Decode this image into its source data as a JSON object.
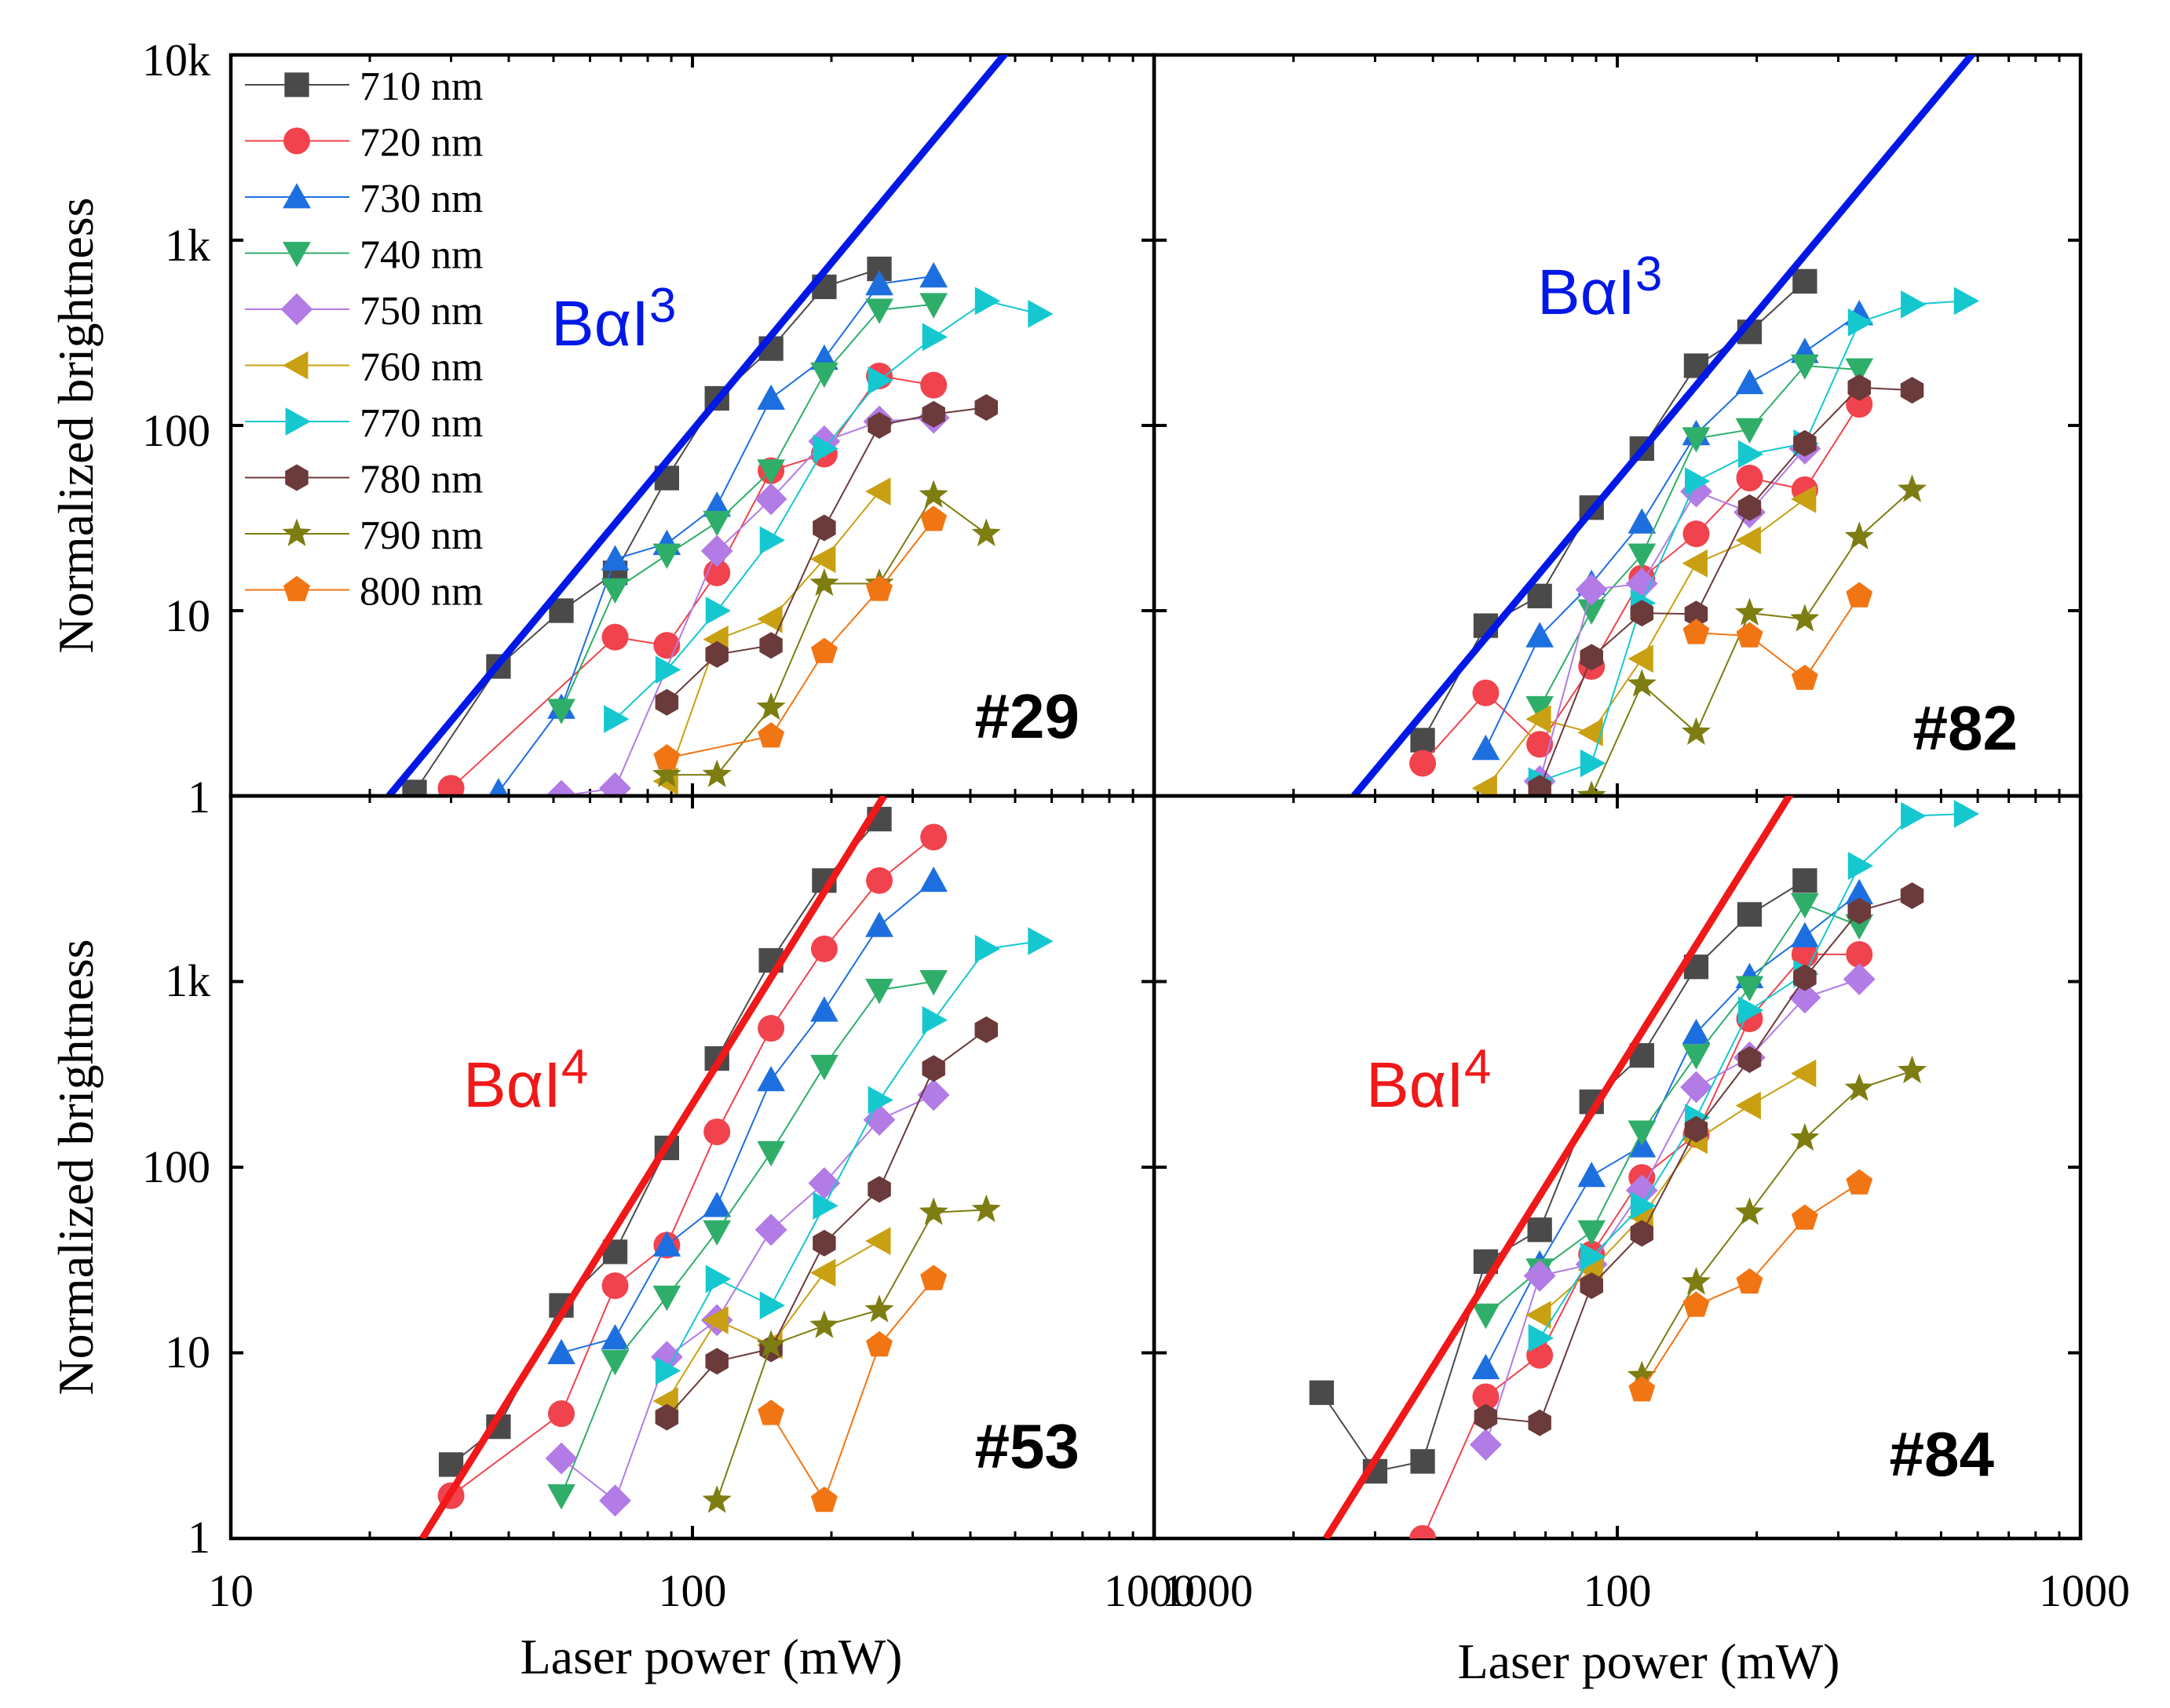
{
  "figure": {
    "shared_xlabel": "Laser power (mW)",
    "shared_ylabel": "Normalized brightness",
    "ytick_labels": [
      "1",
      "10",
      "100",
      "1k",
      "10k"
    ],
    "ytick_labels_bottom": [
      "1",
      "10",
      "100",
      "1k"
    ],
    "xtick_labels_left": [
      "10",
      "100",
      "1000"
    ],
    "xtick_labels_right": [
      "1000",
      "100",
      "1000"
    ]
  },
  "legend": [
    {
      "name": "710 nm",
      "color": "#4a4a4a",
      "marker": "square"
    },
    {
      "name": "720 nm",
      "color": "#f0434d",
      "marker": "circle"
    },
    {
      "name": "730 nm",
      "color": "#1d6fe0",
      "marker": "triangle-up"
    },
    {
      "name": "740 nm",
      "color": "#2fae6a",
      "marker": "triangle-down"
    },
    {
      "name": "750 nm",
      "color": "#b27be6",
      "marker": "diamond"
    },
    {
      "name": "760 nm",
      "color": "#c9a012",
      "marker": "triangle-left"
    },
    {
      "name": "770 nm",
      "color": "#15c8d0",
      "marker": "triangle-right"
    },
    {
      "name": "780 nm",
      "color": "#6b3a3a",
      "marker": "hexagon"
    },
    {
      "name": "790 nm",
      "color": "#7d7d12",
      "marker": "star"
    },
    {
      "name": "800 nm",
      "color": "#f27513",
      "marker": "pentagon"
    }
  ],
  "chart_data": [
    {
      "type": "scatter",
      "panel_label": "#29",
      "fit": {
        "label_base": "BαI",
        "label_exp": "3",
        "order": 3,
        "color": "#0018e6",
        "x": [
          22,
          500
        ],
        "y": [
          1,
          11780
        ]
      },
      "xlim": [
        10,
        1000
      ],
      "ylim": [
        1,
        10000
      ],
      "xscale": "log",
      "yscale": "log",
      "xlabel": "",
      "ylabel": "Normalized brightness",
      "series": [
        {
          "name": "710 nm",
          "x": [
            25,
            38,
            52,
            68,
            88,
            113,
            148,
            193,
            254
          ],
          "y": [
            1.05,
            5,
            10,
            16,
            52,
            140,
            260,
            560,
            700
          ]
        },
        {
          "name": "720 nm",
          "x": [
            30,
            68,
            88,
            113,
            148,
            193,
            254,
            333
          ],
          "y": [
            1.1,
            7.2,
            6.5,
            16,
            57,
            70,
            185,
            165
          ]
        },
        {
          "name": "730 nm",
          "x": [
            38,
            52,
            68,
            88,
            113,
            148,
            193,
            254,
            333
          ],
          "y": [
            1.05,
            3,
            19,
            23,
            37,
            140,
            230,
            580,
            640
          ]
        },
        {
          "name": "740 nm",
          "x": [
            52,
            68,
            88,
            113,
            148,
            193,
            254,
            333
          ],
          "y": [
            2.9,
            13,
            20,
            30,
            57,
            190,
            420,
            450
          ]
        },
        {
          "name": "750 nm",
          "x": [
            52,
            68,
            113,
            148,
            193,
            254,
            333
          ],
          "y": [
            1,
            1.1,
            21,
            40,
            82,
            105,
            110
          ]
        },
        {
          "name": "760 nm",
          "x": [
            88,
            113,
            148,
            193,
            254
          ],
          "y": [
            1.2,
            7,
            9,
            19,
            44
          ]
        },
        {
          "name": "770 nm",
          "x": [
            68,
            88,
            113,
            148,
            193,
            254,
            333,
            433,
            564
          ],
          "y": [
            2.6,
            4.8,
            10,
            24,
            75,
            175,
            300,
            470,
            400
          ]
        },
        {
          "name": "780 nm",
          "x": [
            88,
            113,
            148,
            193,
            254,
            333,
            433
          ],
          "y": [
            3.2,
            5.8,
            6.5,
            28,
            100,
            115,
            125
          ]
        },
        {
          "name": "790 nm",
          "x": [
            88,
            113,
            148,
            193,
            254,
            333,
            433
          ],
          "y": [
            1.3,
            1.3,
            3,
            14,
            14,
            42,
            26
          ]
        },
        {
          "name": "800 nm",
          "x": [
            88,
            148,
            193,
            254,
            333
          ],
          "y": [
            1.6,
            2.1,
            6,
            13,
            31
          ]
        }
      ]
    },
    {
      "type": "scatter",
      "panel_label": "#82",
      "fit": {
        "label_base": "BαI",
        "label_exp": "3",
        "order": 3,
        "color": "#0018e6",
        "x": [
          27,
          600
        ],
        "y": [
          1,
          10950
        ]
      },
      "xlim": [
        10,
        1000
      ],
      "ylim": [
        1,
        10000
      ],
      "xscale": "log",
      "yscale": "log",
      "xlabel": "",
      "ylabel": "",
      "series": [
        {
          "name": "710 nm",
          "x": [
            38,
            52,
            68,
            88,
            113,
            148,
            193,
            254
          ],
          "y": [
            2,
            8.3,
            12,
            36,
            75,
            210,
            320,
            600
          ]
        },
        {
          "name": "720 nm",
          "x": [
            38,
            52,
            68,
            88,
            113,
            148,
            193,
            254,
            333
          ],
          "y": [
            1.5,
            3.6,
            1.9,
            5,
            15,
            26,
            52,
            45,
            130
          ]
        },
        {
          "name": "730 nm",
          "x": [
            52,
            68,
            88,
            113,
            148,
            193,
            254,
            333
          ],
          "y": [
            1.8,
            7.3,
            14,
            30,
            90,
            170,
            250,
            400
          ]
        },
        {
          "name": "740 nm",
          "x": [
            68,
            88,
            113,
            148,
            193,
            254,
            333
          ],
          "y": [
            3,
            10,
            20,
            85,
            95,
            210,
            200
          ]
        },
        {
          "name": "750 nm",
          "x": [
            68,
            88,
            113,
            148,
            193,
            254
          ],
          "y": [
            1.2,
            13,
            14,
            44,
            34,
            75
          ]
        },
        {
          "name": "760 nm",
          "x": [
            52,
            68,
            88,
            113,
            148,
            193,
            254
          ],
          "y": [
            1.1,
            2.6,
            2.2,
            5.5,
            18,
            24,
            40
          ]
        },
        {
          "name": "770 nm",
          "x": [
            68,
            88,
            113,
            148,
            193,
            254,
            333,
            433,
            564
          ],
          "y": [
            1.2,
            1.5,
            11,
            50,
            70,
            80,
            360,
            450,
            470
          ]
        },
        {
          "name": "780 nm",
          "x": [
            68,
            88,
            113,
            148,
            193,
            254,
            333,
            433
          ],
          "y": [
            1.1,
            5.6,
            9.7,
            9.6,
            36,
            80,
            160,
            155
          ]
        },
        {
          "name": "790 nm",
          "x": [
            88,
            113,
            148,
            193,
            254,
            333,
            433
          ],
          "y": [
            1,
            4,
            2.2,
            9.7,
            9,
            25,
            45
          ]
        },
        {
          "name": "800 nm",
          "x": [
            148,
            193,
            254,
            333
          ],
          "y": [
            7.6,
            7.3,
            4.3,
            12
          ]
        }
      ]
    },
    {
      "type": "scatter",
      "panel_label": "#53",
      "fit": {
        "label_base": "BαI",
        "label_exp": "4",
        "order": 4,
        "color": "#f01818",
        "x": [
          26,
          260
        ],
        "y": [
          1,
          10000
        ]
      },
      "xlim": [
        10,
        1000
      ],
      "ylim": [
        1,
        10000
      ],
      "xscale": "log",
      "yscale": "log",
      "xlabel": "Laser power (mW)",
      "ylabel": "Normalized brightness",
      "series": [
        {
          "name": "710 nm",
          "x": [
            30,
            38,
            52,
            68,
            88,
            113,
            148,
            193,
            254
          ],
          "y": [
            2.5,
            4,
            18,
            35,
            127,
            385,
            1300,
            3500,
            7500
          ]
        },
        {
          "name": "720 nm",
          "x": [
            30,
            52,
            68,
            88,
            113,
            148,
            193,
            254,
            333
          ],
          "y": [
            1.7,
            4.7,
            23,
            38,
            155,
            560,
            1500,
            3500,
            6000
          ]
        },
        {
          "name": "730 nm",
          "x": [
            52,
            68,
            88,
            113,
            148,
            193,
            254,
            333
          ],
          "y": [
            10,
            12,
            38,
            62,
            295,
            700,
            2000,
            3500
          ]
        },
        {
          "name": "740 nm",
          "x": [
            52,
            68,
            88,
            113,
            148,
            193,
            254,
            333
          ],
          "y": [
            1.7,
            9,
            20,
            45,
            120,
            350,
            900,
            1000
          ]
        },
        {
          "name": "750 nm",
          "x": [
            52,
            68,
            88,
            113,
            148,
            193,
            254,
            333
          ],
          "y": [
            2.7,
            1.6,
            9.5,
            15,
            46,
            82,
            180,
            245
          ]
        },
        {
          "name": "760 nm",
          "x": [
            88,
            113,
            148,
            193,
            254
          ],
          "y": [
            5.5,
            15,
            11,
            27,
            40
          ]
        },
        {
          "name": "770 nm",
          "x": [
            88,
            113,
            148,
            193,
            254,
            333,
            433,
            564
          ],
          "y": [
            8,
            25,
            18,
            62,
            230,
            620,
            1500,
            1650
          ]
        },
        {
          "name": "780 nm",
          "x": [
            88,
            113,
            148,
            193,
            254,
            333,
            433
          ],
          "y": [
            4.5,
            9,
            10.5,
            39,
            76,
            340,
            550
          ]
        },
        {
          "name": "790 nm",
          "x": [
            113,
            148,
            193,
            254,
            333,
            433
          ],
          "y": [
            1.6,
            11,
            14,
            17,
            57,
            59
          ]
        },
        {
          "name": "800 nm",
          "x": [
            148,
            193,
            254,
            333
          ],
          "y": [
            4.7,
            1.6,
            11,
            25
          ]
        }
      ]
    },
    {
      "type": "scatter",
      "panel_label": "#84",
      "fit": {
        "label_base": "BαI",
        "label_exp": "4",
        "order": 4,
        "color": "#f01818",
        "x": [
          23.5,
          240
        ],
        "y": [
          1,
          10870
        ]
      },
      "xlim": [
        10,
        1000
      ],
      "ylim": [
        1,
        10000
      ],
      "xscale": "log",
      "yscale": "log",
      "xlabel": "Laser power (mW)",
      "ylabel": "",
      "series": [
        {
          "name": "710 nm",
          "x": [
            23,
            30,
            38,
            52,
            68,
            88,
            113,
            148,
            193,
            254
          ],
          "y": [
            6.1,
            2.3,
            2.6,
            31,
            46,
            225,
            400,
            1200,
            2300,
            3500
          ]
        },
        {
          "name": "720 nm",
          "x": [
            38,
            52,
            68,
            88,
            113,
            148,
            193,
            254,
            333
          ],
          "y": [
            1,
            5.8,
            9.7,
            34,
            88,
            150,
            630,
            1400,
            1400
          ]
        },
        {
          "name": "730 nm",
          "x": [
            52,
            68,
            88,
            113,
            148,
            193,
            254,
            333
          ],
          "y": [
            8.3,
            30,
            90,
            130,
            530,
            1060,
            1760,
            3000
          ]
        },
        {
          "name": "740 nm",
          "x": [
            52,
            68,
            88,
            113,
            148,
            193,
            254,
            333
          ],
          "y": [
            16,
            28,
            45,
            155,
            400,
            930,
            2600,
            2000
          ]
        },
        {
          "name": "750 nm",
          "x": [
            52,
            68,
            88,
            113,
            148,
            193,
            254,
            333
          ],
          "y": [
            3.2,
            26,
            30,
            75,
            270,
            390,
            820,
            1030
          ]
        },
        {
          "name": "760 nm",
          "x": [
            68,
            88,
            113,
            148,
            193,
            254
          ],
          "y": [
            16,
            28,
            54,
            140,
            215,
            320
          ]
        },
        {
          "name": "770 nm",
          "x": [
            68,
            88,
            113,
            148,
            193,
            254,
            333,
            433,
            564
          ],
          "y": [
            12,
            33,
            62,
            185,
            700,
            1100,
            4200,
            7800,
            8000
          ]
        },
        {
          "name": "780 nm",
          "x": [
            52,
            68,
            88,
            113,
            148,
            193,
            254,
            333,
            433
          ],
          "y": [
            4.5,
            4.2,
            23,
            44,
            160,
            380,
            1050,
            2400,
            2900
          ]
        },
        {
          "name": "790 nm",
          "x": [
            113,
            148,
            193,
            254,
            333,
            433
          ],
          "y": [
            7.5,
            24,
            57,
            143,
            265,
            330
          ]
        },
        {
          "name": "800 nm",
          "x": [
            113,
            148,
            193,
            254,
            333
          ],
          "y": [
            6.3,
            18,
            24,
            53,
            82
          ]
        }
      ]
    }
  ]
}
